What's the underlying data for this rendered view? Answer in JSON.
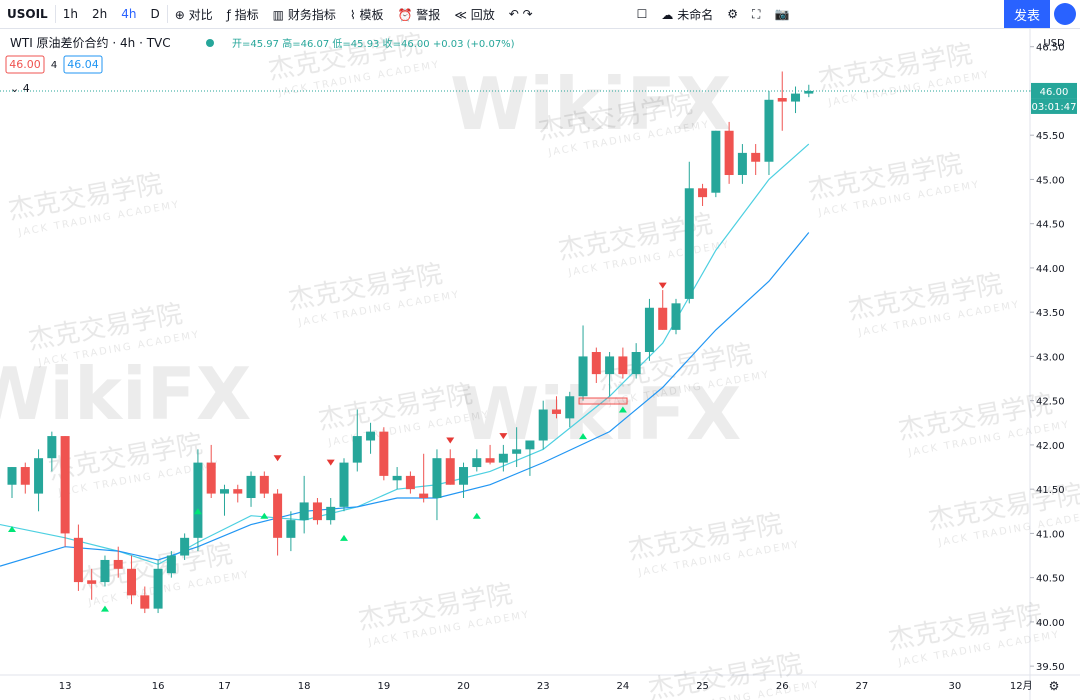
{
  "toolbar": {
    "symbol": "USOIL",
    "intervals": [
      "1h",
      "2h",
      "4h",
      "D"
    ],
    "buttons": [
      "对比",
      "指标",
      "财务指标",
      "模板",
      "警报",
      "回放"
    ],
    "layout_name": "未命名",
    "publish": "发表"
  },
  "legend": {
    "title": "WTI 原油差价合约",
    "interval": "4h",
    "source": "TVC",
    "open": "开=45.97",
    "high": "高=46.07",
    "low": "低=45.93",
    "close": "收=46.00",
    "change": "+0.03 (+0.07%)",
    "bid": "46.00",
    "spread": "4",
    "ask": "46.04",
    "collapse": "4"
  },
  "watermark": {
    "cn": "杰克交易学院",
    "en": "JACK TRADING ACADEMY",
    "logo": "WikiFX"
  },
  "chart": {
    "type": "candlestick",
    "currency": "USD",
    "last_price": 46.0,
    "last_price_label": "46.00",
    "countdown": "03:01:47",
    "ylim": [
      39.4,
      46.7
    ],
    "yticks": [
      {
        "value": 39.5,
        "label": "39.50"
      },
      {
        "value": 40,
        "label": "40.00"
      },
      {
        "value": 40.5,
        "label": "40.50"
      },
      {
        "value": 41,
        "label": "41.00"
      },
      {
        "value": 41.5,
        "label": "41.50"
      },
      {
        "value": 42,
        "label": "42.00"
      },
      {
        "value": 42.5,
        "label": "42.50"
      },
      {
        "value": 43,
        "label": "43.00"
      },
      {
        "value": 43.5,
        "label": "43.50"
      },
      {
        "value": 44,
        "label": "44.00"
      },
      {
        "value": 44.5,
        "label": "44.50"
      },
      {
        "value": 45,
        "label": "45.00"
      },
      {
        "value": 45.5,
        "label": "45.50"
      },
      {
        "value": 46,
        "label": "46.00"
      },
      {
        "value": 46.5,
        "label": "46.50"
      }
    ],
    "xticks": [
      "13",
      "16",
      "17",
      "18",
      "19",
      "20",
      "23",
      "24",
      "25",
      "26",
      "27",
      "30",
      "12月"
    ],
    "up_color": "#26a69a",
    "down_color": "#ef5350",
    "candles": [
      {
        "open": 41.55,
        "high": 41.75,
        "low": 41.4,
        "close": 41.75
      },
      {
        "open": 41.75,
        "high": 41.8,
        "low": 41.45,
        "close": 41.55
      },
      {
        "open": 41.45,
        "high": 41.95,
        "low": 41.25,
        "close": 41.85
      },
      {
        "open": 41.85,
        "high": 42.15,
        "low": 41.7,
        "close": 42.1
      },
      {
        "open": 42.1,
        "high": 42.1,
        "low": 40.85,
        "close": 41.0
      },
      {
        "open": 40.95,
        "high": 41.1,
        "low": 40.35,
        "close": 40.45
      },
      {
        "open": 40.47,
        "high": 40.6,
        "low": 40.25,
        "close": 40.43
      },
      {
        "open": 40.45,
        "high": 40.75,
        "low": 40.4,
        "close": 40.7
      },
      {
        "open": 40.7,
        "high": 40.85,
        "low": 40.5,
        "close": 40.6
      },
      {
        "open": 40.6,
        "high": 40.75,
        "low": 40.2,
        "close": 40.3
      },
      {
        "open": 40.3,
        "high": 40.4,
        "low": 40.1,
        "close": 40.15
      },
      {
        "open": 40.15,
        "high": 40.7,
        "low": 40.1,
        "close": 40.6
      },
      {
        "open": 40.55,
        "high": 40.8,
        "low": 40.5,
        "close": 40.75
      },
      {
        "open": 40.75,
        "high": 41.0,
        "low": 40.7,
        "close": 40.95
      },
      {
        "open": 40.95,
        "high": 41.95,
        "low": 40.8,
        "close": 41.8
      },
      {
        "open": 41.8,
        "high": 42.0,
        "low": 41.4,
        "close": 41.45
      },
      {
        "open": 41.45,
        "high": 41.55,
        "low": 41.2,
        "close": 41.5
      },
      {
        "open": 41.5,
        "high": 41.55,
        "low": 41.35,
        "close": 41.45
      },
      {
        "open": 41.4,
        "high": 41.7,
        "low": 41.3,
        "close": 41.65
      },
      {
        "open": 41.65,
        "high": 41.7,
        "low": 41.4,
        "close": 41.45
      },
      {
        "open": 41.45,
        "high": 41.5,
        "low": 40.75,
        "close": 40.95
      },
      {
        "open": 40.95,
        "high": 41.25,
        "low": 40.8,
        "close": 41.15
      },
      {
        "open": 41.15,
        "high": 41.65,
        "low": 41.0,
        "close": 41.35
      },
      {
        "open": 41.35,
        "high": 41.4,
        "low": 41.1,
        "close": 41.15
      },
      {
        "open": 41.15,
        "high": 41.4,
        "low": 41.1,
        "close": 41.3
      },
      {
        "open": 41.3,
        "high": 41.85,
        "low": 41.25,
        "close": 41.8
      },
      {
        "open": 41.8,
        "high": 42.4,
        "low": 41.7,
        "close": 42.1
      },
      {
        "open": 42.05,
        "high": 42.25,
        "low": 41.9,
        "close": 42.15
      },
      {
        "open": 42.15,
        "high": 42.2,
        "low": 41.6,
        "close": 41.65
      },
      {
        "open": 41.6,
        "high": 41.75,
        "low": 41.5,
        "close": 41.65
      },
      {
        "open": 41.65,
        "high": 41.7,
        "low": 41.45,
        "close": 41.5
      },
      {
        "open": 41.45,
        "high": 41.9,
        "low": 41.35,
        "close": 41.4
      },
      {
        "open": 41.4,
        "high": 41.95,
        "low": 41.15,
        "close": 41.85
      },
      {
        "open": 41.85,
        "high": 41.95,
        "low": 41.55,
        "close": 41.55
      },
      {
        "open": 41.55,
        "high": 41.8,
        "low": 41.4,
        "close": 41.75
      },
      {
        "open": 41.75,
        "high": 41.95,
        "low": 41.7,
        "close": 41.85
      },
      {
        "open": 41.85,
        "high": 42.0,
        "low": 41.78,
        "close": 41.8
      },
      {
        "open": 41.8,
        "high": 42.0,
        "low": 41.7,
        "close": 41.9
      },
      {
        "open": 41.9,
        "high": 42.2,
        "low": 41.75,
        "close": 41.95
      },
      {
        "open": 41.95,
        "high": 42.05,
        "low": 41.65,
        "close": 42.05
      },
      {
        "open": 42.05,
        "high": 42.5,
        "low": 41.95,
        "close": 42.4
      },
      {
        "open": 42.4,
        "high": 42.55,
        "low": 42.3,
        "close": 42.35
      },
      {
        "open": 42.3,
        "high": 42.6,
        "low": 42.2,
        "close": 42.55
      },
      {
        "open": 42.55,
        "high": 43.35,
        "low": 42.5,
        "close": 43.0
      },
      {
        "open": 43.05,
        "high": 43.1,
        "low": 42.7,
        "close": 42.8
      },
      {
        "open": 42.8,
        "high": 43.05,
        "low": 42.55,
        "close": 43.0
      },
      {
        "open": 43.0,
        "high": 43.1,
        "low": 42.75,
        "close": 42.8
      },
      {
        "open": 42.8,
        "high": 43.15,
        "low": 42.75,
        "close": 43.05
      },
      {
        "open": 43.05,
        "high": 43.65,
        "low": 42.95,
        "close": 43.55
      },
      {
        "open": 43.55,
        "high": 43.75,
        "low": 43.3,
        "close": 43.3
      },
      {
        "open": 43.3,
        "high": 43.65,
        "low": 43.25,
        "close": 43.6
      },
      {
        "open": 43.65,
        "high": 45.2,
        "low": 43.6,
        "close": 44.9
      },
      {
        "open": 44.9,
        "high": 44.95,
        "low": 44.7,
        "close": 44.8
      },
      {
        "open": 44.85,
        "high": 45.55,
        "low": 44.8,
        "close": 45.55
      },
      {
        "open": 45.55,
        "high": 45.65,
        "low": 44.95,
        "close": 45.05
      },
      {
        "open": 45.05,
        "high": 45.4,
        "low": 44.95,
        "close": 45.3
      },
      {
        "open": 45.3,
        "high": 45.4,
        "low": 45.05,
        "close": 45.2
      },
      {
        "open": 45.2,
        "high": 46.0,
        "low": 45.05,
        "close": 45.9
      },
      {
        "open": 45.92,
        "high": 46.22,
        "low": 45.55,
        "close": 45.88
      },
      {
        "open": 45.88,
        "high": 46.05,
        "low": 45.75,
        "close": 45.97
      },
      {
        "open": 45.97,
        "high": 46.07,
        "low": 45.93,
        "close": 46.0
      }
    ],
    "ma": [
      {
        "color": "#4dd0e1",
        "values": [
          41.1,
          40.95,
          40.8,
          40.65,
          40.9,
          41.2,
          41.15,
          41.3,
          41.5,
          41.55,
          41.7,
          41.95,
          42.55,
          43.15,
          44.2,
          45.0,
          45.4
        ]
      },
      {
        "color": "#2196f3",
        "values": [
          40.63,
          40.85,
          40.8,
          40.7,
          40.85,
          41.1,
          41.25,
          41.3,
          41.4,
          41.4,
          41.55,
          41.8,
          42.15,
          42.65,
          43.3,
          43.85,
          44.4
        ]
      }
    ]
  }
}
